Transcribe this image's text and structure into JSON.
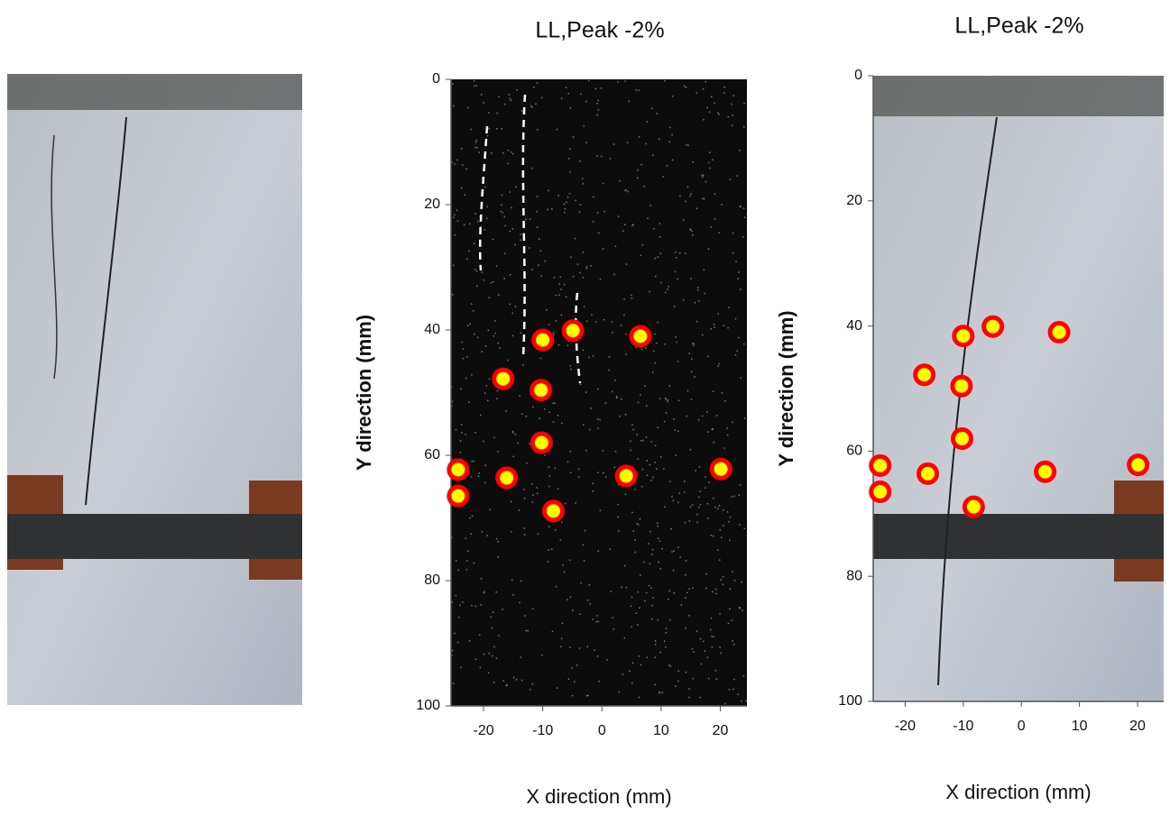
{
  "chart_data": [
    {
      "type": "scatter",
      "title": "LL,Peak -2%",
      "x_label": "X direction (mm)",
      "y_label": "Y direction (mm)",
      "xlim": [
        -25.5,
        24.5
      ],
      "ylim": [
        0,
        100
      ],
      "y_inverted": true,
      "xticks": [
        -20,
        -10,
        0,
        10,
        20
      ],
      "yticks": [
        0,
        20,
        40,
        60,
        80,
        100
      ],
      "color": "#ffff00",
      "edge_color": "#ff0000",
      "x": [
        -24.3,
        -24.3,
        -16.7,
        -16.1,
        -10.0,
        -10.3,
        -10.2,
        -8.2,
        -4.9,
        4.1,
        6.5,
        20.1
      ],
      "values": [
        62.3,
        66.5,
        47.8,
        63.6,
        41.6,
        49.6,
        58.0,
        68.9,
        40.1,
        63.3,
        41.0,
        62.2
      ]
    },
    {
      "type": "scatter",
      "title": "LL,Peak -2%",
      "x_label": "X direction (mm)",
      "y_label": "Y direction (mm)",
      "xlim": [
        -25.5,
        24.5
      ],
      "ylim": [
        0,
        100
      ],
      "y_inverted": true,
      "xticks": [
        -20,
        -10,
        0,
        10,
        20
      ],
      "yticks": [
        0,
        20,
        40,
        60,
        80,
        100
      ],
      "color": "#ffff00",
      "edge_color": "#ff0000",
      "x": [
        -24.3,
        -24.3,
        -16.7,
        -16.1,
        -10.0,
        -10.3,
        -10.2,
        -8.2,
        -4.9,
        4.1,
        6.5,
        20.1
      ],
      "values": [
        62.3,
        66.5,
        47.8,
        63.6,
        41.6,
        49.6,
        58.0,
        68.9,
        40.1,
        63.3,
        41.0,
        62.2
      ]
    }
  ]
}
